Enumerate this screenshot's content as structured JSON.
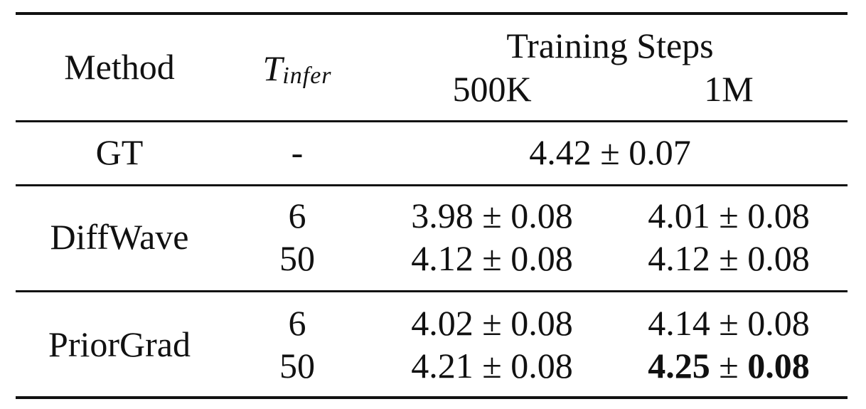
{
  "table": {
    "header": {
      "method": "Method",
      "tinfer_base": "T",
      "tinfer_sub": "infer",
      "group": "Training Steps",
      "col_500k": "500K",
      "col_1m": "1M"
    },
    "rows": [
      {
        "method": "GT",
        "tinfer": "-",
        "span_value": "4.42 ± 0.07"
      },
      {
        "method": "DiffWave",
        "sub": [
          {
            "tinfer": "6",
            "v500k": "3.98 ± 0.08",
            "v1m": "4.01 ± 0.08"
          },
          {
            "tinfer": "50",
            "v500k": "4.12 ± 0.08",
            "v1m": "4.12 ± 0.08"
          }
        ]
      },
      {
        "method": "PriorGrad",
        "sub": [
          {
            "tinfer": "6",
            "v500k": "4.02 ± 0.08",
            "v1m": "4.14 ± 0.08"
          },
          {
            "tinfer": "50",
            "v500k": "4.21 ± 0.08",
            "v1m_num": "4.25",
            "v1m_pm": "±",
            "v1m_err": "0.08"
          }
        ]
      }
    ]
  }
}
